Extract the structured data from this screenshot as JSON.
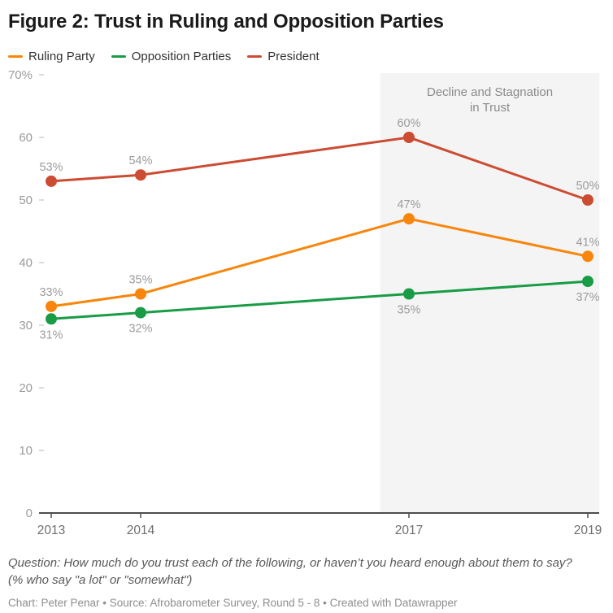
{
  "title": "Figure 2: Trust in Ruling and Opposition Parties",
  "chart_data": {
    "type": "line",
    "x": [
      2013,
      2014,
      2017,
      2019
    ],
    "x_tick_labels": [
      "2013",
      "2014",
      "2017",
      "2019"
    ],
    "ylim": [
      0,
      70
    ],
    "y_ticks": [
      0,
      10,
      20,
      30,
      40,
      50,
      60,
      70
    ],
    "y_tick_labels": [
      "0",
      "10",
      "20",
      "30",
      "40",
      "50",
      "60",
      "70%"
    ],
    "grid": false,
    "legend_position": "top",
    "value_suffix": "%",
    "series": [
      {
        "name": "Ruling Party",
        "color": "#f8860d",
        "values": [
          33,
          35,
          47,
          41
        ],
        "label_position": "above"
      },
      {
        "name": "Opposition Parties",
        "color": "#189c46",
        "values": [
          31,
          32,
          35,
          37
        ],
        "label_position": "below"
      },
      {
        "name": "President",
        "color": "#cc4c33",
        "values": [
          53,
          54,
          60,
          50
        ],
        "label_position": "above"
      }
    ],
    "annotation": {
      "text_lines": [
        "Decline and Stagnation",
        "in Trust"
      ],
      "region_start_x": 2016.68,
      "region_end_x": 2019.13,
      "region_fill": "#f4f4f4",
      "text_color": "#8a8a8a"
    }
  },
  "footer": {
    "question_line1": "Question: How much do you trust each of the following, or haven’t you heard enough about them to say?",
    "question_line2": "(% who say \"a lot\" or \"somewhat\")",
    "credit": "Chart: Peter Penar • Source: Afrobarometer Survey, Round 5 - 8 • Created with Datawrapper"
  },
  "colors": {
    "title": "#1a1a1a",
    "legend_text": "#333333",
    "axis_line": "#4d4d4d",
    "x_tick_label": "#6e6e6e",
    "y_tick_label": "#9b9b9b",
    "y_tick_dash": "#cfcfcf",
    "value_label": "#9c9c9c",
    "question_text": "#595959",
    "credit_text": "#8e8e8e",
    "background": "#ffffff"
  }
}
